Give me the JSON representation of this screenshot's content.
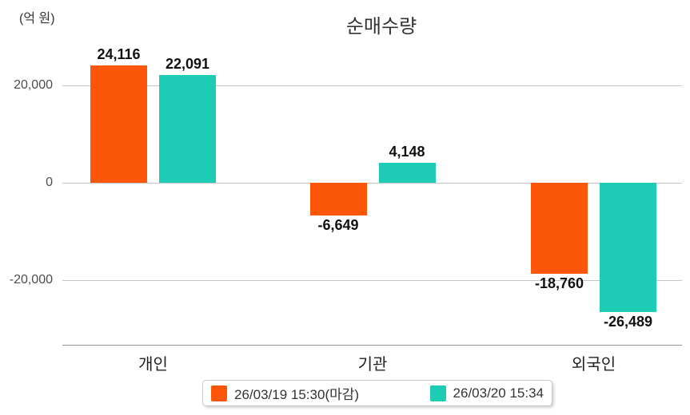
{
  "title": "순매수량",
  "unit_label": "(억 원)",
  "colors": {
    "series1": "#fc5708",
    "series2": "#1ecbb4",
    "grid_line": "#c4c4c4",
    "axis_line": "#919191",
    "tick_text": "#4d4d4d",
    "value_text": "#111111",
    "category_text": "#222222",
    "title_text": "#333333"
  },
  "y_axis": {
    "unit": "(억 원)",
    "ticks": [
      {
        "value": 20000,
        "label": "20,000"
      },
      {
        "value": 0,
        "label": "0"
      },
      {
        "value": -20000,
        "label": "-20,000"
      }
    ]
  },
  "chart_data": {
    "type": "bar",
    "title": "순매수량",
    "ylabel": "(억 원)",
    "categories": [
      "개인",
      "기관",
      "외국인"
    ],
    "series": [
      {
        "name": "26/03/19 15:30(마감)",
        "color": "#fc5708",
        "values": [
          24116,
          -6649,
          -18760
        ],
        "value_labels": [
          "24,116",
          "-6,649",
          "-18,760"
        ]
      },
      {
        "name": "26/03/20 15:34",
        "color": "#1ecbb4",
        "values": [
          22091,
          4148,
          -26489
        ],
        "value_labels": [
          "22,091",
          "4,148",
          "-26,489"
        ]
      }
    ],
    "ylim": [
      -30000,
      30000
    ],
    "grid": true,
    "legend_position": "bottom"
  },
  "legend": {
    "items": [
      {
        "label": "26/03/19 15:30(마감)",
        "color": "#fc5708"
      },
      {
        "label": "26/03/20 15:34",
        "color": "#1ecbb4"
      }
    ]
  }
}
